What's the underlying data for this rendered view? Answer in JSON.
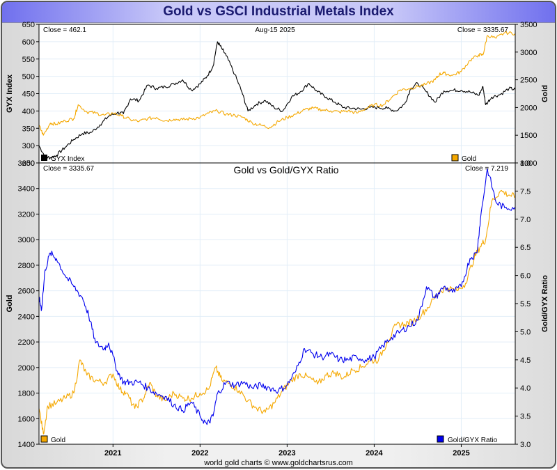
{
  "page_title": "Gold vs GSCI Industrial Metals Index",
  "footer": "world gold charts © www.goldchartsrus.com",
  "colors": {
    "gold": "#f5a800",
    "gyx": "#000000",
    "ratio": "#0000ee",
    "grid": "#e2eef8"
  },
  "chart_data": [
    {
      "type": "line",
      "title": "",
      "date_label": "Aug-15  2025",
      "left_close": "Close = 462.1",
      "right_close": "Close = 3335.67",
      "ylabel_left": "GYX Index",
      "ylabel_right": "Gold",
      "ylim_left": [
        250,
        650
      ],
      "ylim_right": [
        1000,
        3500
      ],
      "yticks_left": [
        "250",
        "300",
        "350",
        "400",
        "450",
        "500",
        "550",
        "600",
        "650"
      ],
      "yticks_right": [
        "1000",
        "1500",
        "2000",
        "2500",
        "3000",
        "3500"
      ],
      "x_range": [
        2020.15,
        2025.62
      ],
      "grid": true,
      "legend": [
        {
          "name": "GYX Index",
          "position": "bottom-left"
        },
        {
          "name": "Gold",
          "position": "bottom-right"
        }
      ],
      "series": [
        {
          "name": "GYX Index",
          "axis": "left",
          "x": [
            2020.15,
            2020.22,
            2020.28,
            2020.35,
            2020.45,
            2020.55,
            2020.65,
            2020.75,
            2020.85,
            2020.95,
            2021.05,
            2021.12,
            2021.2,
            2021.3,
            2021.4,
            2021.5,
            2021.6,
            2021.7,
            2021.8,
            2021.9,
            2022.0,
            2022.08,
            2022.15,
            2022.2,
            2022.25,
            2022.3,
            2022.4,
            2022.48,
            2022.55,
            2022.65,
            2022.75,
            2022.85,
            2022.95,
            2023.05,
            2023.15,
            2023.25,
            2023.35,
            2023.45,
            2023.55,
            2023.65,
            2023.75,
            2023.85,
            2023.95,
            2024.05,
            2024.15,
            2024.25,
            2024.35,
            2024.42,
            2024.5,
            2024.6,
            2024.7,
            2024.8,
            2024.9,
            2025.0,
            2025.1,
            2025.2,
            2025.25,
            2025.28,
            2025.35,
            2025.45,
            2025.55,
            2025.62
          ],
          "y": [
            300,
            268,
            265,
            272,
            295,
            318,
            335,
            338,
            360,
            385,
            395,
            392,
            435,
            430,
            475,
            465,
            470,
            478,
            490,
            460,
            478,
            500,
            530,
            600,
            580,
            560,
            505,
            455,
            400,
            420,
            430,
            410,
            400,
            440,
            455,
            480,
            455,
            440,
            425,
            410,
            408,
            405,
            410,
            410,
            408,
            400,
            420,
            465,
            480,
            455,
            425,
            458,
            460,
            460,
            455,
            445,
            470,
            418,
            440,
            448,
            465,
            462
          ]
        },
        {
          "name": "Gold",
          "axis": "right",
          "x": [
            2020.15,
            2020.2,
            2020.28,
            2020.35,
            2020.45,
            2020.55,
            2020.6,
            2020.7,
            2020.8,
            2020.9,
            2021.0,
            2021.1,
            2021.2,
            2021.3,
            2021.4,
            2021.5,
            2021.6,
            2021.7,
            2021.8,
            2021.9,
            2022.0,
            2022.1,
            2022.2,
            2022.3,
            2022.4,
            2022.5,
            2022.6,
            2022.7,
            2022.8,
            2022.9,
            2023.0,
            2023.1,
            2023.2,
            2023.3,
            2023.4,
            2023.5,
            2023.6,
            2023.7,
            2023.8,
            2023.9,
            2024.0,
            2024.1,
            2024.2,
            2024.3,
            2024.4,
            2024.5,
            2024.6,
            2024.7,
            2024.75,
            2024.8,
            2024.9,
            2025.0,
            2025.1,
            2025.2,
            2025.25,
            2025.3,
            2025.4,
            2025.5,
            2025.62
          ],
          "y": [
            1680,
            1500,
            1720,
            1700,
            1760,
            1800,
            2050,
            1920,
            1900,
            1860,
            1900,
            1850,
            1780,
            1750,
            1800,
            1820,
            1760,
            1790,
            1780,
            1800,
            1820,
            1900,
            1940,
            1880,
            1860,
            1820,
            1720,
            1680,
            1640,
            1750,
            1820,
            1880,
            1960,
            1990,
            1960,
            1940,
            1920,
            1940,
            1900,
            1980,
            2050,
            2040,
            2180,
            2320,
            2340,
            2380,
            2420,
            2500,
            2600,
            2620,
            2580,
            2650,
            2850,
            2950,
            2950,
            3300,
            3250,
            3350,
            3336
          ]
        }
      ]
    },
    {
      "type": "line",
      "title": "Gold vs Gold/GYX Ratio",
      "left_close": "Close = 3335.67",
      "right_close": "Close = 7.219",
      "ylabel_left": "Gold",
      "ylabel_right": "Gold/GYX Ratio",
      "ylim_left": [
        1400,
        3600
      ],
      "ylim_right": [
        3.0,
        8.0
      ],
      "yticks_left": [
        "1400",
        "1600",
        "1800",
        "2000",
        "2200",
        "2400",
        "2600",
        "2800",
        "3000",
        "3200",
        "3400",
        "3600"
      ],
      "yticks_right": [
        "3.0",
        "3.5",
        "4.0",
        "4.5",
        "5.0",
        "5.5",
        "6.0",
        "6.5",
        "7.0",
        "7.5",
        "8.0"
      ],
      "xticks": [
        "2021",
        "2022",
        "2023",
        "2024",
        "2025"
      ],
      "x_range": [
        2020.15,
        2025.62
      ],
      "grid": true,
      "legend": [
        {
          "name": "Gold",
          "position": "bottom-left"
        },
        {
          "name": "Gold/GYX Ratio",
          "position": "bottom-right"
        }
      ],
      "series": [
        {
          "name": "Gold",
          "axis": "left",
          "x": [
            2020.15,
            2020.2,
            2020.25,
            2020.35,
            2020.45,
            2020.55,
            2020.62,
            2020.7,
            2020.8,
            2020.9,
            2021.0,
            2021.08,
            2021.15,
            2021.25,
            2021.35,
            2021.42,
            2021.5,
            2021.6,
            2021.7,
            2021.8,
            2021.9,
            2022.0,
            2022.1,
            2022.18,
            2022.25,
            2022.35,
            2022.45,
            2022.55,
            2022.65,
            2022.75,
            2022.85,
            2022.95,
            2023.05,
            2023.15,
            2023.25,
            2023.35,
            2023.45,
            2023.55,
            2023.65,
            2023.75,
            2023.85,
            2023.95,
            2024.05,
            2024.15,
            2024.25,
            2024.35,
            2024.45,
            2024.55,
            2024.65,
            2024.75,
            2024.85,
            2024.95,
            2025.05,
            2025.15,
            2025.22,
            2025.28,
            2025.35,
            2025.45,
            2025.55,
            2025.62
          ],
          "y": [
            1680,
            1480,
            1700,
            1720,
            1760,
            1800,
            2060,
            1940,
            1900,
            1880,
            1950,
            1830,
            1800,
            1680,
            1760,
            1880,
            1780,
            1740,
            1800,
            1760,
            1760,
            1800,
            1830,
            2000,
            1900,
            1870,
            1820,
            1740,
            1680,
            1650,
            1720,
            1820,
            1900,
            1950,
            1920,
            1870,
            1940,
            1960,
            1920,
            1980,
            2000,
            2050,
            2060,
            2200,
            2330,
            2340,
            2360,
            2420,
            2500,
            2600,
            2620,
            2600,
            2660,
            2860,
            2950,
            3000,
            3300,
            3380,
            3350,
            3336
          ]
        },
        {
          "name": "Gold/GYX Ratio",
          "axis": "right",
          "x": [
            2020.15,
            2020.18,
            2020.22,
            2020.28,
            2020.35,
            2020.45,
            2020.55,
            2020.65,
            2020.72,
            2020.8,
            2020.9,
            2020.95,
            2021.05,
            2021.12,
            2021.2,
            2021.3,
            2021.4,
            2021.5,
            2021.6,
            2021.7,
            2021.8,
            2021.9,
            2022.0,
            2022.08,
            2022.15,
            2022.2,
            2022.3,
            2022.4,
            2022.5,
            2022.6,
            2022.7,
            2022.8,
            2022.9,
            2023.0,
            2023.1,
            2023.2,
            2023.3,
            2023.4,
            2023.5,
            2023.6,
            2023.7,
            2023.8,
            2023.9,
            2024.0,
            2024.1,
            2024.2,
            2024.3,
            2024.4,
            2024.5,
            2024.6,
            2024.7,
            2024.8,
            2024.9,
            2025.0,
            2025.1,
            2025.18,
            2025.22,
            2025.3,
            2025.4,
            2025.5,
            2025.62
          ],
          "y": [
            5.6,
            5.4,
            6.1,
            6.4,
            6.3,
            6.0,
            5.8,
            5.6,
            5.3,
            4.8,
            4.7,
            4.8,
            4.3,
            4.1,
            4.1,
            4.1,
            4.0,
            3.9,
            3.85,
            3.7,
            3.6,
            3.75,
            3.5,
            3.35,
            3.5,
            3.9,
            4.1,
            4.05,
            4.1,
            4.0,
            4.05,
            4.0,
            3.95,
            4.05,
            4.3,
            4.7,
            4.6,
            4.55,
            4.6,
            4.5,
            4.5,
            4.55,
            4.5,
            4.55,
            4.75,
            4.9,
            5.0,
            5.1,
            5.2,
            5.8,
            5.6,
            5.8,
            5.7,
            5.8,
            6.3,
            6.4,
            7.0,
            7.9,
            7.3,
            7.2,
            7.22
          ]
        }
      ]
    }
  ]
}
